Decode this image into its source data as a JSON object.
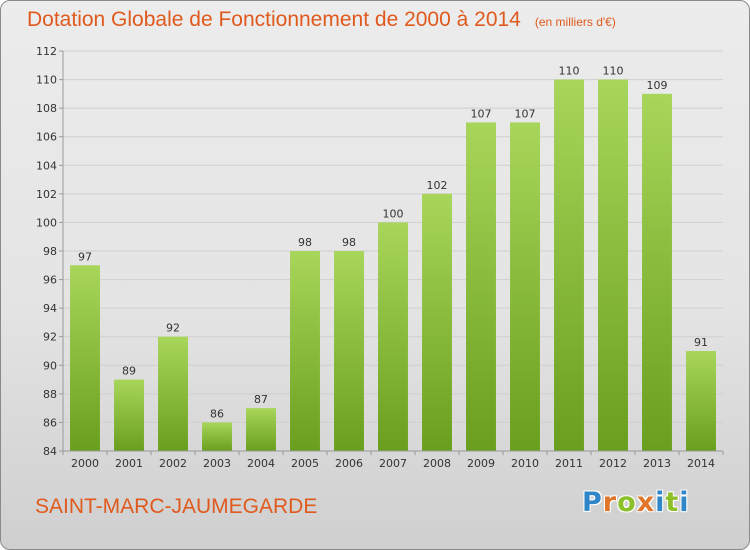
{
  "header": {
    "title": "Dotation Globale de Fonctionnement de 2000 à 2014",
    "unit": "(en milliers d'€)"
  },
  "footer": {
    "commune": "SAINT-MARC-JAUMEGARDE",
    "logo_text": "Proxiti",
    "logo_letters": [
      {
        "char": "P",
        "color": "#2f86c8"
      },
      {
        "char": "r",
        "color": "#e0762a"
      },
      {
        "char": "o",
        "color": "#8cbf2a"
      },
      {
        "char": "x",
        "color": "#e0762a"
      },
      {
        "char": "i",
        "color": "#2f86c8"
      },
      {
        "char": "t",
        "color": "#8cbf2a"
      },
      {
        "char": "i",
        "color": "#2f86c8"
      }
    ]
  },
  "colors": {
    "title": "#e05a1e",
    "bar_light": "#a8d65a",
    "bar_dark": "#6a9e1e",
    "grid": "#cfcfcf",
    "axis": "#9a9a9a",
    "label": "#333333"
  },
  "chart_data": {
    "type": "bar",
    "title": "Dotation Globale de Fonctionnement de 2000 à 2014",
    "subtitle": "(en milliers d'€)",
    "categories": [
      "2000",
      "2001",
      "2002",
      "2003",
      "2004",
      "2005",
      "2006",
      "2007",
      "2008",
      "2009",
      "2010",
      "2011",
      "2012",
      "2013",
      "2014"
    ],
    "values": [
      97,
      89,
      92,
      86,
      87,
      98,
      98,
      100,
      102,
      107,
      107,
      110,
      110,
      109,
      91
    ],
    "ylim": [
      84,
      112
    ],
    "yticks": [
      84,
      86,
      88,
      90,
      92,
      94,
      96,
      98,
      100,
      102,
      104,
      106,
      108,
      110,
      112
    ],
    "grid": true,
    "data_labels": true
  }
}
